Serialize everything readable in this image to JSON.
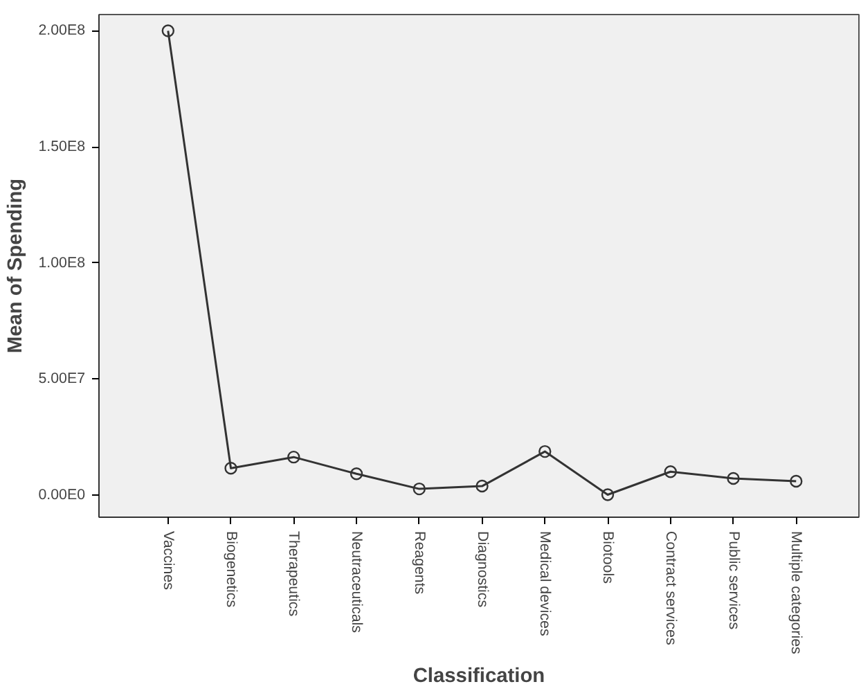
{
  "chart_data": {
    "type": "line",
    "xlabel": "Classification",
    "ylabel": "Mean of Spending",
    "categories": [
      "Vaccines",
      "Biogenetics",
      "Therapeutics",
      "Neutraceuticals",
      "Reagents",
      "Diagnostics",
      "Medical devices",
      "Biotools",
      "Contract services",
      "Public services",
      "Multiple categories"
    ],
    "series": [
      {
        "color": "#333333",
        "values": [
          200000000,
          11600000,
          16400000,
          9200000,
          2700000,
          3900000,
          18800000,
          200000,
          10100000,
          7200000,
          6000000
        ]
      }
    ],
    "ylim": [
      -9500000,
      207000000
    ],
    "yticks": [
      {
        "value": 0,
        "label": "0.00E0"
      },
      {
        "value": 50000000,
        "label": "5.00E7"
      },
      {
        "value": 100000000,
        "label": "1.00E8"
      },
      {
        "value": 150000000,
        "label": "1.50E8"
      },
      {
        "value": 200000000,
        "label": "2.00E8"
      }
    ],
    "marker": "circle",
    "line_style": "solid"
  }
}
